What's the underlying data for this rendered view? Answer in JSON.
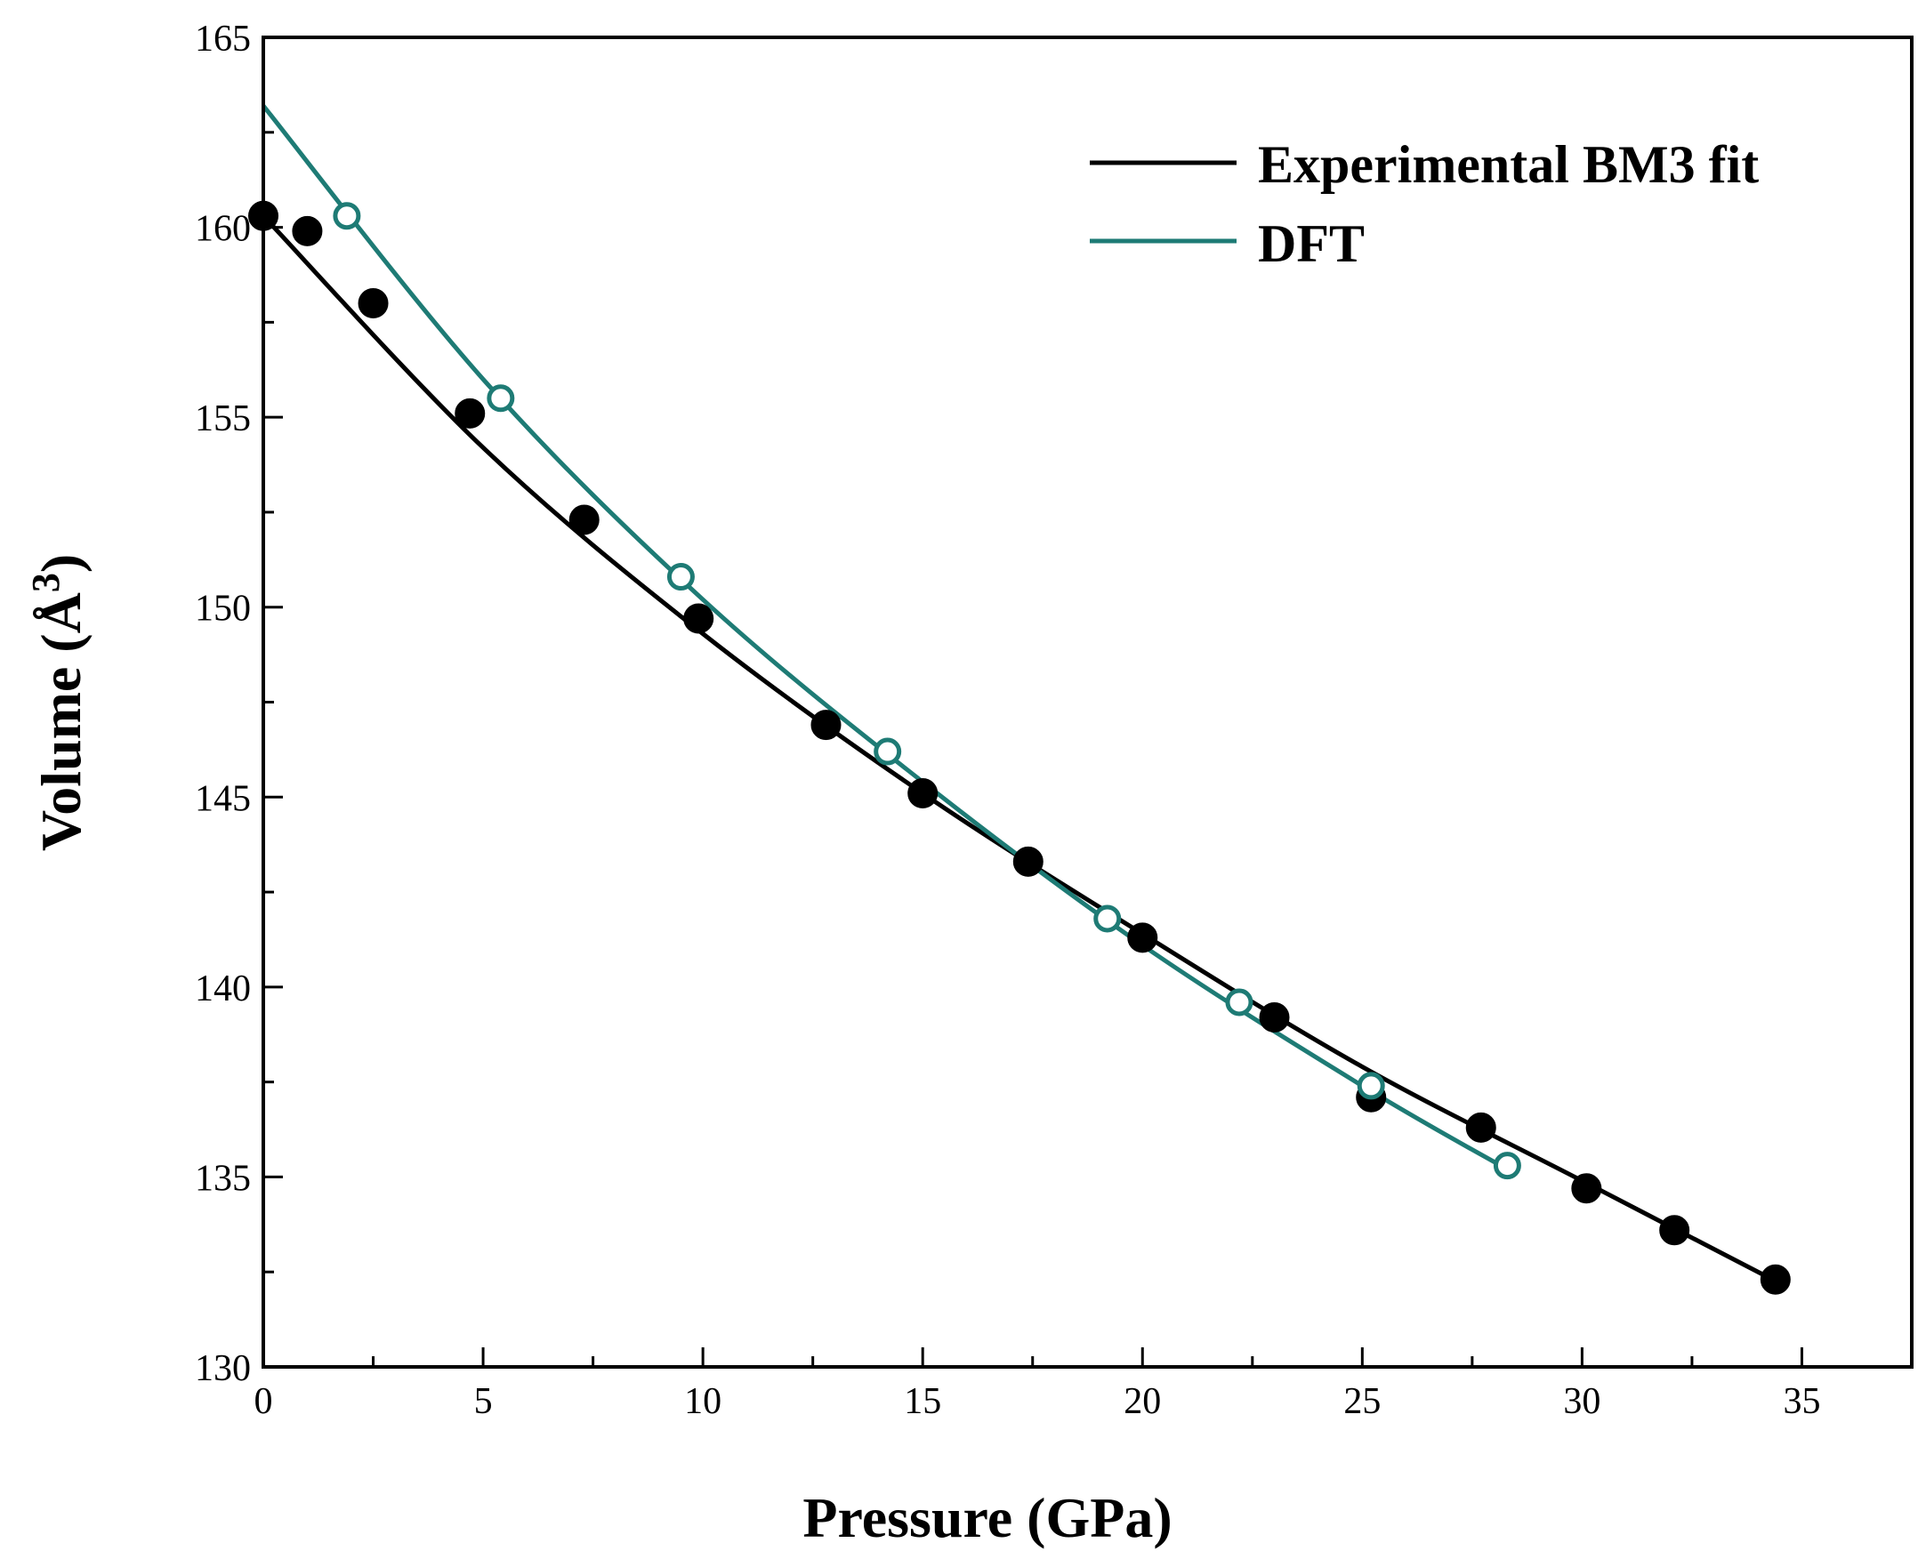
{
  "chart_data": {
    "type": "scatter",
    "xlabel": "Pressure (GPa)",
    "ylabel": "Volume (Å",
    "ylabel_superscript": "3",
    "ylabel_close": ")",
    "xlim": [
      0,
      37.5
    ],
    "ylim": [
      130,
      165
    ],
    "xticks": [
      0,
      5,
      10,
      15,
      20,
      25,
      30,
      35
    ],
    "yticks": [
      130,
      135,
      140,
      145,
      150,
      155,
      160,
      165
    ],
    "xtick_labels": [
      "0",
      "5",
      "10",
      "15",
      "20",
      "25",
      "30",
      "35"
    ],
    "ytick_labels": [
      "130",
      "135",
      "140",
      "145",
      "150",
      "155",
      "160",
      "165"
    ],
    "legend_position": "top-right",
    "series": [
      {
        "name": "Experimental BM3 fit",
        "color": "#000000",
        "marker": "filled-circle",
        "points": [
          [
            0.0,
            160.3
          ],
          [
            1.0,
            159.9
          ],
          [
            2.5,
            158.0
          ],
          [
            4.7,
            155.1
          ],
          [
            7.3,
            152.3
          ],
          [
            9.9,
            149.7
          ],
          [
            12.8,
            146.9
          ],
          [
            15.0,
            145.1
          ],
          [
            17.4,
            143.3
          ],
          [
            20.0,
            141.3
          ],
          [
            23.0,
            139.2
          ],
          [
            25.2,
            137.1
          ],
          [
            27.7,
            136.3
          ],
          [
            30.1,
            134.7
          ],
          [
            32.1,
            133.6
          ],
          [
            34.4,
            132.3
          ]
        ],
        "fit_curve": [
          [
            0,
            160.3
          ],
          [
            5,
            154.2
          ],
          [
            10,
            149.3
          ],
          [
            15,
            145.1
          ],
          [
            20,
            141.4
          ],
          [
            25,
            137.9
          ],
          [
            30,
            134.9
          ],
          [
            34.5,
            132.2
          ]
        ]
      },
      {
        "name": "DFT",
        "color": "#1e7b75",
        "marker": "open-circle",
        "points": [
          [
            1.9,
            160.3
          ],
          [
            5.4,
            155.5
          ],
          [
            9.5,
            150.8
          ],
          [
            14.2,
            146.2
          ],
          [
            19.2,
            141.8
          ],
          [
            22.2,
            139.6
          ],
          [
            25.2,
            137.4
          ],
          [
            28.3,
            135.3
          ]
        ],
        "fit_curve": [
          [
            0,
            163.2
          ],
          [
            5,
            156.0
          ],
          [
            10,
            150.2
          ],
          [
            15,
            145.4
          ],
          [
            20,
            141.1
          ],
          [
            25,
            137.4
          ],
          [
            28.3,
            135.2
          ]
        ]
      }
    ]
  }
}
